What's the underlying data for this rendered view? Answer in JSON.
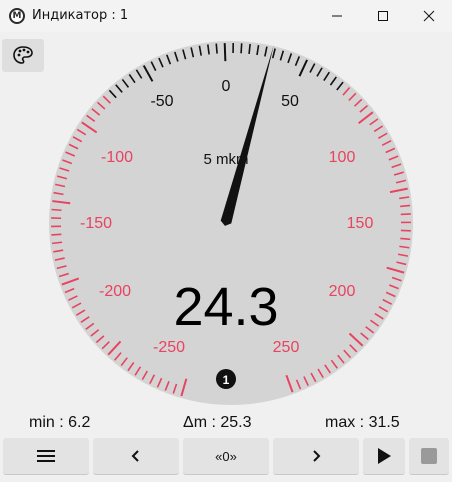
{
  "window": {
    "title": "Индикатор : 1"
  },
  "gauge": {
    "unit_label": "5 mkm",
    "value_display": "24.3",
    "needle_value": 24.3,
    "badge": "1",
    "labels_dark": [
      "-50",
      "0",
      "50"
    ],
    "labels_red_left": [
      "-100",
      "-150",
      "-200",
      "-250"
    ],
    "labels_red_right": [
      "100",
      "150",
      "200",
      "250"
    ],
    "colors": {
      "dial": "#d4d4d4",
      "red_tick": "#e8435f",
      "dark_tick": "#111111",
      "red_label": "#e8435f"
    }
  },
  "stats": {
    "min": "min : 6.2",
    "dm": "Δm : 25.3",
    "max": "max : 31.5"
  },
  "toolbar": {
    "menu_icon": "hamburger-icon",
    "prev_icon": "chevron-left-icon",
    "zero_label": "«0»",
    "next_icon": "chevron-right-icon",
    "play_icon": "play-icon",
    "stop_icon": "stop-icon"
  }
}
